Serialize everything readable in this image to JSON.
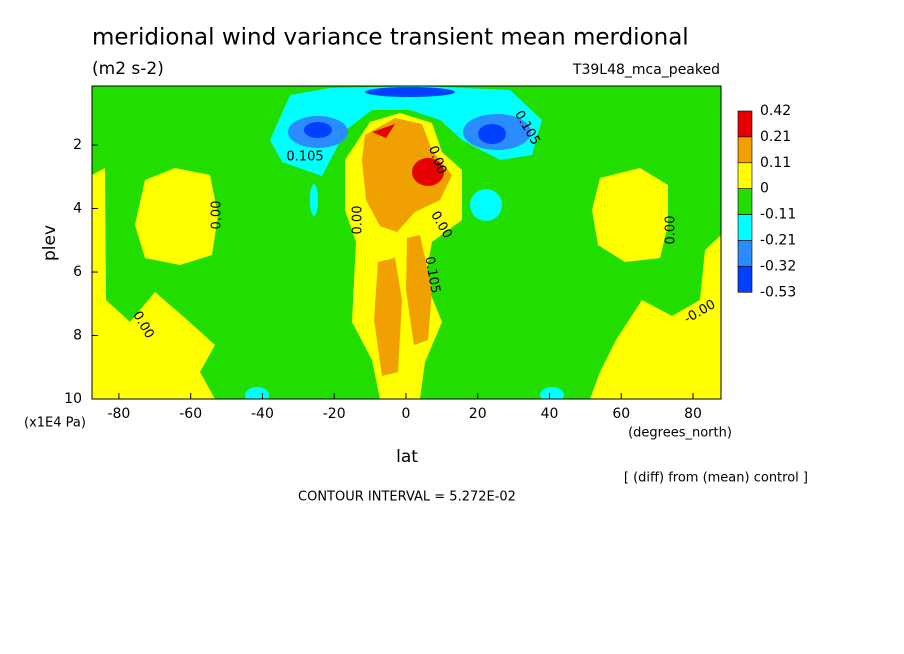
{
  "chart_data": {
    "type": "contour",
    "title": "meridional wind variance transient mean merdional",
    "subtitle": "(m2 s-2)",
    "dataset": "T39L48_mca_peaked",
    "x_label": "lat",
    "x_units": "(degrees_north)",
    "y_label": "plev",
    "y_units": "(x1E4 Pa)",
    "xlim": [
      -87.5,
      87.8
    ],
    "xticks": [
      -80,
      -60,
      -40,
      -20,
      0,
      20,
      40,
      60,
      80
    ],
    "ylim": [
      10,
      0.14
    ],
    "yticks": [
      2,
      4,
      6,
      8,
      10
    ],
    "levels": [
      0.42,
      0.21,
      0.11,
      0,
      -0.11,
      -0.21,
      -0.32,
      -0.53
    ],
    "level_colors": [
      "#e60000",
      "#f0a000",
      "#ffff00",
      "#22dd00",
      "#00ffff",
      "#2a8cff",
      "#0040ff"
    ],
    "contour_labels": [
      "0.00",
      "0.105",
      "0.105",
      "0.00",
      "0.00",
      "0.105",
      "0.00",
      "0.00",
      "-0.00",
      "0.00"
    ],
    "note": "[ (diff) from (mean) control ]",
    "contour_interval": "CONTOUR INTERVAL = 5.272E-02"
  }
}
